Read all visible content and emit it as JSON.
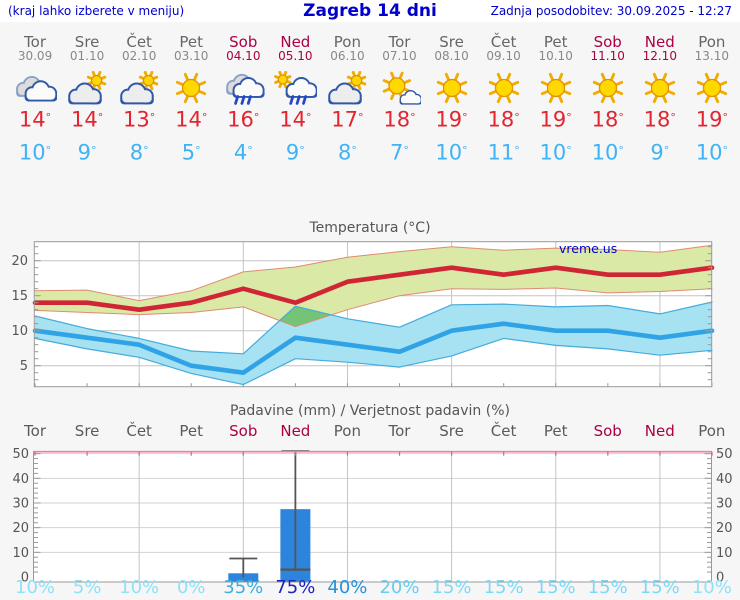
{
  "header": {
    "left_note": "(kraj lahko izberete v meniju)",
    "title": "Zagreb 14 dni",
    "updated": "Zadnja posodobitev: 30.09.2025 - 12:27"
  },
  "deg": "°",
  "watermark": "vreme.us",
  "days": [
    {
      "name": "Tor",
      "date": "30.09",
      "icon": "cloudy",
      "tmax": 14,
      "tmin": 10,
      "weekend": false
    },
    {
      "name": "Sre",
      "date": "01.10",
      "icon": "partly-sunny",
      "tmax": 14,
      "tmin": 9,
      "weekend": false
    },
    {
      "name": "Čet",
      "date": "02.10",
      "icon": "partly-sunny",
      "tmax": 13,
      "tmin": 8,
      "weekend": false
    },
    {
      "name": "Pet",
      "date": "03.10",
      "icon": "sunny",
      "tmax": 14,
      "tmin": 5,
      "weekend": false
    },
    {
      "name": "Sob",
      "date": "04.10",
      "icon": "rain",
      "tmax": 16,
      "tmin": 4,
      "weekend": true
    },
    {
      "name": "Ned",
      "date": "05.10",
      "icon": "sun-rain",
      "tmax": 14,
      "tmin": 9,
      "weekend": true
    },
    {
      "name": "Pon",
      "date": "06.10",
      "icon": "partly-sunny",
      "tmax": 17,
      "tmin": 8,
      "weekend": false
    },
    {
      "name": "Tor",
      "date": "07.10",
      "icon": "mostly-sunny",
      "tmax": 18,
      "tmin": 7,
      "weekend": false
    },
    {
      "name": "Sre",
      "date": "08.10",
      "icon": "sunny",
      "tmax": 19,
      "tmin": 10,
      "weekend": false
    },
    {
      "name": "Čet",
      "date": "09.10",
      "icon": "sunny",
      "tmax": 18,
      "tmin": 11,
      "weekend": false
    },
    {
      "name": "Pet",
      "date": "10.10",
      "icon": "sunny",
      "tmax": 19,
      "tmin": 10,
      "weekend": false
    },
    {
      "name": "Sob",
      "date": "11.10",
      "icon": "sunny",
      "tmax": 18,
      "tmin": 10,
      "weekend": true
    },
    {
      "name": "Ned",
      "date": "12.10",
      "icon": "sunny",
      "tmax": 18,
      "tmin": 9,
      "weekend": true
    },
    {
      "name": "Pon",
      "date": "13.10",
      "icon": "sunny",
      "tmax": 19,
      "tmin": 10,
      "weekend": false
    }
  ],
  "chart_data": [
    {
      "type": "line",
      "title": "Temperatura (°C)",
      "categories": [
        "Tor 30.09",
        "Sre 01.10",
        "Čet 02.10",
        "Pet 03.10",
        "Sob 04.10",
        "Ned 05.10",
        "Pon 06.10",
        "Tor 07.10",
        "Sre 08.10",
        "Čet 09.10",
        "Pet 10.10",
        "Sob 11.10",
        "Ned 12.10",
        "Pon 13.10"
      ],
      "series": [
        {
          "name": "max_temp",
          "values": [
            14,
            14,
            13,
            14,
            16,
            14,
            17,
            18,
            19,
            18,
            19,
            18,
            18,
            19
          ]
        },
        {
          "name": "max_band_upper",
          "values": [
            15.7,
            15.8,
            14.3,
            15.7,
            18.4,
            19.1,
            20.5,
            21.3,
            22.0,
            21.5,
            21.8,
            21.6,
            21.2,
            22.2
          ]
        },
        {
          "name": "max_band_lower",
          "values": [
            12.9,
            12.6,
            12.3,
            12.6,
            13.4,
            10.6,
            13.0,
            15.0,
            16.0,
            15.9,
            16.1,
            15.4,
            15.6,
            16.0
          ]
        },
        {
          "name": "min_temp",
          "values": [
            10,
            9,
            8,
            5,
            4,
            9,
            8,
            7,
            10,
            11,
            10,
            10,
            9,
            10
          ]
        },
        {
          "name": "min_band_upper",
          "values": [
            12.1,
            10.3,
            8.9,
            7.1,
            6.7,
            13.5,
            11.7,
            10.5,
            13.7,
            13.8,
            13.4,
            13.6,
            12.4,
            14.1
          ]
        },
        {
          "name": "min_band_lower",
          "values": [
            8.9,
            7.4,
            6.2,
            3.9,
            2.3,
            6.0,
            5.5,
            4.8,
            6.4,
            8.9,
            7.9,
            7.4,
            6.5,
            7.2
          ]
        }
      ],
      "yticks": [
        5,
        10,
        15,
        20
      ],
      "ylim": [
        2.0,
        22.9
      ],
      "grid": true,
      "legend": false
    },
    {
      "type": "bar",
      "title": "Padavine (mm) / Verjetnost padavin (%)",
      "categories": [
        "Tor",
        "Sre",
        "Čet",
        "Pet",
        "Sob",
        "Ned",
        "Pon",
        "Tor",
        "Sre",
        "Čet",
        "Pet",
        "Sob",
        "Ned",
        "Pon"
      ],
      "weekend": [
        false,
        false,
        false,
        false,
        true,
        true,
        false,
        false,
        false,
        false,
        false,
        true,
        true,
        false
      ],
      "precip_mm": [
        0,
        0,
        0,
        0,
        1.5,
        27.5,
        0,
        0,
        0,
        0,
        0,
        0,
        0,
        0
      ],
      "whisker_max_mm": [
        0,
        0,
        0,
        0,
        7.5,
        51,
        0,
        0,
        0,
        0,
        0,
        0,
        0,
        0
      ],
      "median_mm": [
        0,
        0,
        0,
        0,
        0,
        3,
        0,
        0,
        0,
        0,
        0,
        0,
        0,
        0
      ],
      "probability_pct": [
        10,
        5,
        10,
        0,
        35,
        75,
        40,
        20,
        15,
        15,
        15,
        15,
        15,
        10
      ],
      "yticks": [
        0,
        10,
        20,
        30,
        40,
        50
      ],
      "ylim": [
        0,
        51
      ],
      "grid": true
    }
  ],
  "colors": {
    "link_blue": "#0000cc",
    "weekend": "#aa0044",
    "weekday": "#666666",
    "date_gray": "#888888",
    "max_red": "#e22530",
    "min_blue": "#3fb3f5",
    "band_green": "#dbe9a6",
    "band_blue": "#a6e2f2",
    "overlap_green": "#74c476",
    "line_red": "#d02535",
    "line_blue": "#2fa3e6",
    "bar_blue": "#2d84dc",
    "pink_axis": "#ee7ba2",
    "grid_gray": "#c4c4c4",
    "prob_scale": {
      "p0": "#8fe1f8",
      "p15": "#7cd9f6",
      "p20": "#63cdf2",
      "p35": "#3dade4",
      "p40": "#2492dc",
      "p75": "#1d23b8"
    }
  }
}
